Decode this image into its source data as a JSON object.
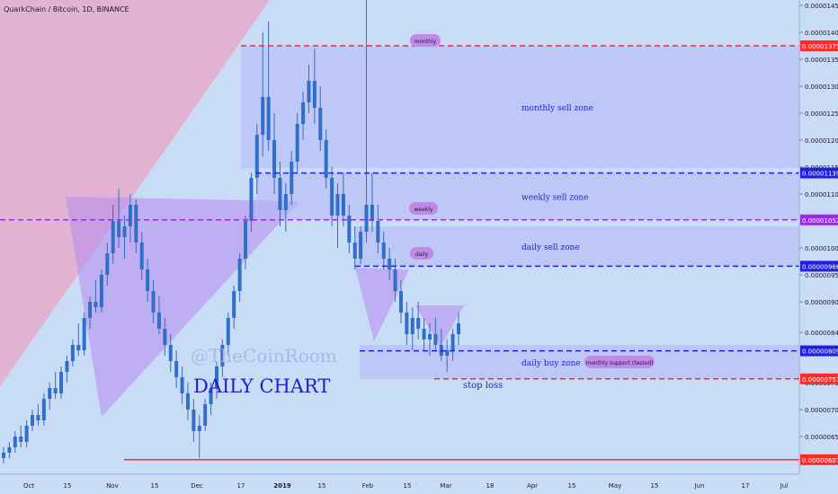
{
  "header": {
    "title": "QuarkChain / Bitcoin, 1D, BINANCE"
  },
  "watermark": {
    "line1": "@TheCoinRoom",
    "line2": "DAILY CHART"
  },
  "colors": {
    "background": "#c9dcf6",
    "candle_body": "#2f6fc8",
    "candle_wick": "#3a6bbf",
    "red_line": "#ff2a2a",
    "blue_line": "#1f1fe0",
    "purple_line": "#9a2be0",
    "zone_fill": "#b3b8f5",
    "zone_text": "#2424c8",
    "pink_wedge": "#e9a6c4",
    "purple_triangle": "#b58af0",
    "label_bubble": "#c08ae8",
    "axis_text": "#1a1a2e"
  },
  "chart_data": {
    "type": "candlestick",
    "ylim": [
      5.8e-06,
      1.46e-05
    ],
    "y_ticks": [
      "0.00001450",
      "0.00001400",
      "0.00001350",
      "0.00001300",
      "0.00001250",
      "0.00001200",
      "0.00001150",
      "0.00001100",
      "0.00001000",
      "0.00000950",
      "0.00000900",
      "0.00000843",
      "0.00000750",
      "0.00000700",
      "0.00000650"
    ],
    "x_ticks": [
      "Oct",
      "15",
      "Nov",
      "15",
      "Dec",
      "17",
      "2019",
      "15",
      "Feb",
      "15",
      "Mar",
      "18",
      "Apr",
      "15",
      "May",
      "15",
      "Jun",
      "17",
      "Jul"
    ],
    "price_tags": [
      {
        "label": "0.00001375",
        "value": 1.375e-05,
        "color": "red"
      },
      {
        "label": "0.00001139",
        "value": 1.139e-05,
        "color": "blue"
      },
      {
        "label": "0.00001052",
        "value": 1.052e-05,
        "color": "purple"
      },
      {
        "label": "0.00000966",
        "value": 9.66e-06,
        "color": "blue"
      },
      {
        "label": "0.00000809",
        "value": 8.09e-06,
        "color": "blue"
      },
      {
        "label": "0.00000757",
        "value": 7.57e-06,
        "color": "red"
      },
      {
        "label": "0.00000607",
        "value": 6.07e-06,
        "color": "red"
      }
    ],
    "zones": [
      {
        "label": "monthly sell zone",
        "top": 1.375e-05,
        "bottom": 1.148e-05
      },
      {
        "label": "weekly sell zone",
        "top": 1.139e-05,
        "bottom": 1.052e-05
      },
      {
        "label": "daily sell zone",
        "top": 1.04e-05,
        "bottom": 9.66e-06
      },
      {
        "label": "daily buy zone",
        "top": 8.2e-06,
        "bottom": 7.57e-06
      }
    ],
    "bubbles": [
      "monthly",
      "weekly",
      "daily",
      "monthly support (tested)"
    ],
    "annotations": [
      "stop loss"
    ],
    "candles": [
      [
        6.1e-06,
        6.3e-06,
        6e-06,
        6.2e-06
      ],
      [
        6.2e-06,
        6.4e-06,
        6.1e-06,
        6.3e-06
      ],
      [
        6.3e-06,
        6.6e-06,
        6.2e-06,
        6.5e-06
      ],
      [
        6.5e-06,
        6.7e-06,
        6.3e-06,
        6.4e-06
      ],
      [
        6.4e-06,
        6.8e-06,
        6.3e-06,
        6.7e-06
      ],
      [
        6.7e-06,
        7e-06,
        6.6e-06,
        6.9e-06
      ],
      [
        6.9e-06,
        7.1e-06,
        6.7e-06,
        6.8e-06
      ],
      [
        6.8e-06,
        7.3e-06,
        6.7e-06,
        7.2e-06
      ],
      [
        7.2e-06,
        7.5e-06,
        7e-06,
        7.4e-06
      ],
      [
        7.4e-06,
        7.7e-06,
        7.2e-06,
        7.3e-06
      ],
      [
        7.3e-06,
        7.8e-06,
        7.2e-06,
        7.7e-06
      ],
      [
        7.7e-06,
        8e-06,
        7.5e-06,
        7.9e-06
      ],
      [
        7.9e-06,
        8.3e-06,
        7.8e-06,
        8.2e-06
      ],
      [
        8.2e-06,
        8.6e-06,
        8e-06,
        8.1e-06
      ],
      [
        8.1e-06,
        8.8e-06,
        8e-06,
        8.7e-06
      ],
      [
        8.7e-06,
        9.1e-06,
        8.5e-06,
        9e-06
      ],
      [
        9e-06,
        9.4e-06,
        8.8e-06,
        8.9e-06
      ],
      [
        8.9e-06,
        9.6e-06,
        8.8e-06,
        9.5e-06
      ],
      [
        9.5e-06,
        1.01e-05,
        9.3e-06,
        9.9e-06
      ],
      [
        9.9e-06,
        1.08e-05,
        9.7e-06,
        1.05e-05
      ],
      [
        1.05e-05,
        1.11e-05,
        1e-05,
        1.02e-05
      ],
      [
        1.02e-05,
        1.06e-05,
        9.8e-06,
        1.04e-05
      ],
      [
        1.04e-05,
        1.1e-05,
        1.01e-05,
        1.08e-05
      ],
      [
        1.08e-05,
        1.09e-05,
        9.9e-06,
        1.01e-05
      ],
      [
        1.01e-05,
        1.03e-05,
        9.4e-06,
        9.6e-06
      ],
      [
        9.6e-06,
        9.8e-06,
        9e-06,
        9.2e-06
      ],
      [
        9.2e-06,
        9.4e-06,
        8.6e-06,
        8.8e-06
      ],
      [
        8.8e-06,
        9.1e-06,
        8.4e-06,
        8.5e-06
      ],
      [
        8.5e-06,
        8.7e-06,
        8e-06,
        8.2e-06
      ],
      [
        8.2e-06,
        8.4e-06,
        7.7e-06,
        7.9e-06
      ],
      [
        7.9e-06,
        8.1e-06,
        7.4e-06,
        7.6e-06
      ],
      [
        7.6e-06,
        7.8e-06,
        7.1e-06,
        7.3e-06
      ],
      [
        7.3e-06,
        7.5e-06,
        6.8e-06,
        7e-06
      ],
      [
        7e-06,
        7.2e-06,
        6.4e-06,
        6.6e-06
      ],
      [
        6.6e-06,
        6.9e-06,
        6.1e-06,
        6.7e-06
      ],
      [
        6.7e-06,
        7.2e-06,
        6.6e-06,
        7.1e-06
      ],
      [
        7.1e-06,
        7.5e-06,
        6.9e-06,
        7.4e-06
      ],
      [
        7.4e-06,
        7.9e-06,
        7.2e-06,
        7.8e-06
      ],
      [
        7.8e-06,
        8.3e-06,
        7.6e-06,
        8.2e-06
      ],
      [
        8.2e-06,
        8.8e-06,
        8e-06,
        8.7e-06
      ],
      [
        8.7e-06,
        9.3e-06,
        8.5e-06,
        9.2e-06
      ],
      [
        9.2e-06,
        9.9e-06,
        9e-06,
        9.8e-06
      ],
      [
        9.8e-06,
        1.06e-05,
        9.6e-06,
        1.05e-05
      ],
      [
        1.05e-05,
        1.14e-05,
        1.03e-05,
        1.13e-05
      ],
      [
        1.13e-05,
        1.23e-05,
        1.1e-05,
        1.21e-05
      ],
      [
        1.21e-05,
        1.4e-05,
        1.17e-05,
        1.28e-05
      ],
      [
        1.28e-05,
        1.42e-05,
        1.18e-05,
        1.2e-05
      ],
      [
        1.2e-05,
        1.25e-05,
        1.1e-05,
        1.13e-05
      ],
      [
        1.13e-05,
        1.16e-05,
        1.04e-05,
        1.07e-05
      ],
      [
        1.07e-05,
        1.12e-05,
        1.03e-05,
        1.1e-05
      ],
      [
        1.1e-05,
        1.18e-05,
        1.08e-05,
        1.16e-05
      ],
      [
        1.16e-05,
        1.25e-05,
        1.14e-05,
        1.23e-05
      ],
      [
        1.23e-05,
        1.29e-05,
        1.2e-05,
        1.27e-05
      ],
      [
        1.27e-05,
        1.34e-05,
        1.25e-05,
        1.31e-05
      ],
      [
        1.31e-05,
        1.37e-05,
        1.23e-05,
        1.26e-05
      ],
      [
        1.26e-05,
        1.3e-05,
        1.18e-05,
        1.2e-05
      ],
      [
        1.2e-05,
        1.22e-05,
        1.11e-05,
        1.13e-05
      ],
      [
        1.13e-05,
        1.15e-05,
        1.04e-05,
        1.06e-05
      ],
      [
        1.06e-05,
        1.12e-05,
        1e-05,
        1.1e-05
      ],
      [
        1.1e-05,
        1.14e-05,
        1.04e-05,
        1.06e-05
      ],
      [
        1.06e-05,
        1.08e-05,
        9.9e-06,
        1.01e-05
      ],
      [
        1.01e-05,
        1.04e-05,
        9.6e-06,
        9.8e-06
      ],
      [
        9.8e-06,
        1.04e-05,
        9.7e-06,
        1.03e-05
      ],
      [
        1.03e-05,
        1.46e-05,
        1.01e-05,
        1.08e-05
      ],
      [
        1.08e-05,
        1.14e-05,
        1.03e-05,
        1.05e-05
      ],
      [
        1.05e-05,
        1.08e-05,
        9.9e-06,
        1.01e-05
      ],
      [
        1.01e-05,
        1.03e-05,
        9.6e-06,
        9.8e-06
      ],
      [
        9.8e-06,
        1e-05,
        9.4e-06,
        9.6e-06
      ],
      [
        9.6e-06,
        9.8e-06,
        9e-06,
        9.2e-06
      ],
      [
        9.2e-06,
        9.4e-06,
        8.6e-06,
        8.8e-06
      ],
      [
        8.8e-06,
        9e-06,
        8.2e-06,
        8.4e-06
      ],
      [
        8.4e-06,
        8.9e-06,
        8.1e-06,
        8.7e-06
      ],
      [
        8.7e-06,
        9e-06,
        8.3e-06,
        8.5e-06
      ],
      [
        8.5e-06,
        8.7e-06,
        8.1e-06,
        8.3e-06
      ],
      [
        8.3e-06,
        8.6e-06,
        8e-06,
        8.4e-06
      ],
      [
        8.4e-06,
        8.7e-06,
        8.1e-06,
        8.2e-06
      ],
      [
        8.2e-06,
        8.5e-06,
        7.9e-06,
        8e-06
      ],
      [
        8e-06,
        8.3e-06,
        7.7e-06,
        8.1e-06
      ],
      [
        8.1e-06,
        8.5e-06,
        7.9e-06,
        8.4e-06
      ],
      [
        8.4e-06,
        8.8e-06,
        8.2e-06,
        8.6e-06
      ]
    ]
  }
}
